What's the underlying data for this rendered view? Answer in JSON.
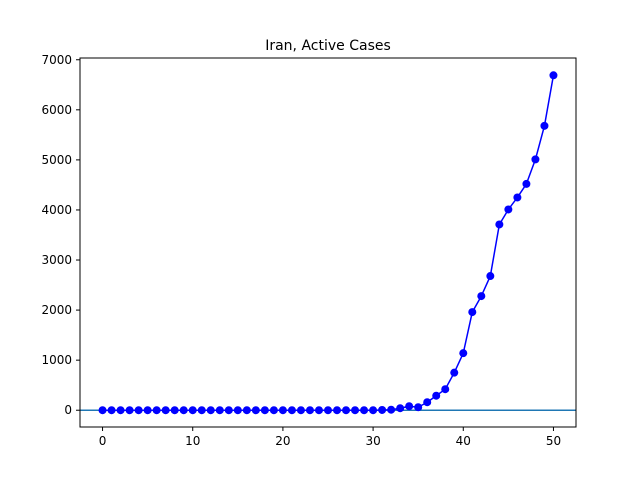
{
  "chart_data": {
    "type": "line",
    "title": "Iran, Active Cases",
    "xlabel": "",
    "ylabel": "",
    "xlim": [
      -2.5,
      52.5
    ],
    "ylim": [
      -335,
      7035
    ],
    "xticks": [
      0,
      10,
      20,
      30,
      40,
      50
    ],
    "yticks": [
      0,
      1000,
      2000,
      3000,
      4000,
      5000,
      6000,
      7000
    ],
    "grid": false,
    "legend": "none",
    "baseline": 0,
    "baseline_color": "#1f77b4",
    "series_color": "#0000ff",
    "series": [
      {
        "x": [
          0,
          1,
          2,
          3,
          4,
          5,
          6,
          7,
          8,
          9,
          10,
          11,
          12,
          13,
          14,
          15,
          16,
          17,
          18,
          19,
          20,
          21,
          22,
          23,
          24,
          25,
          26,
          27,
          28,
          29,
          30,
          31,
          32,
          33,
          34,
          35,
          36,
          37,
          38,
          39,
          40,
          41,
          42,
          43,
          44,
          45,
          46,
          47,
          48,
          49,
          50
        ],
        "values": [
          0,
          0,
          0,
          0,
          0,
          0,
          0,
          0,
          0,
          0,
          0,
          0,
          0,
          0,
          0,
          0,
          0,
          0,
          0,
          0,
          0,
          0,
          0,
          0,
          0,
          0,
          0,
          0,
          0,
          0,
          0,
          5,
          10,
          40,
          80,
          60,
          160,
          290,
          420,
          750,
          1140,
          1960,
          2280,
          2680,
          3710,
          4010,
          4250,
          4520,
          5010,
          5680,
          6690
        ]
      }
    ]
  }
}
